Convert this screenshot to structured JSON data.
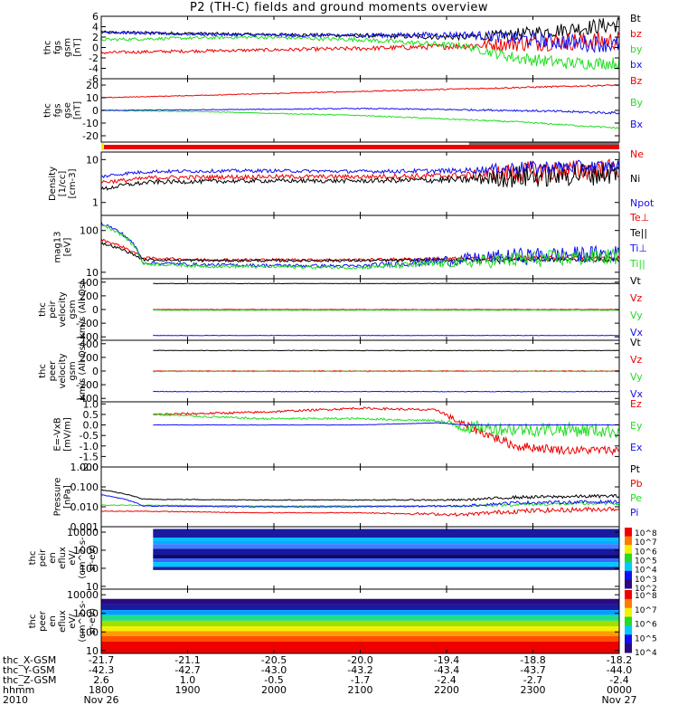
{
  "title": "P2 (TH-C) fields and ground moments overview",
  "colors": {
    "black": "#000000",
    "red": "#ee0000",
    "green": "#22dd22",
    "blue": "#1010ee",
    "yellow": "#f2f200",
    "orange": "#ff7a00"
  },
  "chart_data": [
    {
      "type": "line",
      "panel": "fgs_gsm",
      "ylabel": [
        "thc",
        "fgs",
        "gsm",
        "[nT]"
      ],
      "yticks": [
        "6",
        "4",
        "2",
        "0",
        "-2",
        "-4",
        "-6"
      ],
      "ylim": [
        -6,
        6
      ],
      "series": [
        {
          "name": "Bt",
          "color": "#000000",
          "x": [
            0,
            0.1,
            0.3,
            0.5,
            0.7,
            0.8,
            0.9,
            1.0
          ],
          "y": [
            2.9,
            2.8,
            2.5,
            2.3,
            2.0,
            2.5,
            3.5,
            4.5
          ],
          "noise": [
            0.3,
            0.3,
            0.3,
            0.4,
            0.6,
            1.2,
            1.4,
            1.6
          ]
        },
        {
          "name": "bz",
          "color": "#ee0000",
          "x": [
            0,
            0.1,
            0.3,
            0.5,
            0.7,
            0.8,
            0.9,
            1.0
          ],
          "y": [
            -1.0,
            -0.8,
            -0.5,
            -0.2,
            0.3,
            0.8,
            1.2,
            1.3
          ],
          "noise": [
            0.3,
            0.3,
            0.3,
            0.4,
            0.6,
            1.6,
            1.8,
            1.8
          ]
        },
        {
          "name": "by",
          "color": "#22dd22",
          "x": [
            0,
            0.1,
            0.3,
            0.5,
            0.7,
            0.8,
            0.9,
            1.0
          ],
          "y": [
            1.5,
            1.7,
            2.0,
            1.5,
            0.3,
            -2.0,
            -3.0,
            -3.0
          ],
          "noise": [
            0.3,
            0.3,
            0.3,
            0.4,
            0.6,
            1.2,
            1.2,
            1.2
          ]
        },
        {
          "name": "bx",
          "color": "#1010ee",
          "x": [
            0,
            0.1,
            0.3,
            0.5,
            0.7,
            0.8,
            0.9,
            1.0
          ],
          "y": [
            3.0,
            2.7,
            2.4,
            2.3,
            2.5,
            1.8,
            1.0,
            0.5
          ],
          "noise": [
            0.3,
            0.3,
            0.3,
            0.4,
            0.6,
            1.4,
            1.6,
            1.6
          ]
        }
      ]
    },
    {
      "type": "line",
      "panel": "fgs_gse_smoothed",
      "ylabel": [
        "thc",
        "fgs",
        "gse",
        "[nT]"
      ],
      "yticks": [
        "20",
        "10",
        "0",
        "-10",
        "-20"
      ],
      "ylim": [
        -25,
        25
      ],
      "series": [
        {
          "name": "Bz",
          "color": "#ee0000",
          "x": [
            0,
            0.2,
            0.5,
            0.8,
            1.0
          ],
          "y": [
            10,
            12,
            15,
            18,
            20
          ],
          "noise": [
            0.3,
            0.3,
            0.4,
            0.6,
            0.6
          ]
        },
        {
          "name": "By",
          "color": "#22dd22",
          "x": [
            0,
            0.2,
            0.5,
            0.8,
            1.0
          ],
          "y": [
            0,
            -1,
            -4,
            -9,
            -14
          ],
          "noise": [
            0.3,
            0.3,
            0.4,
            0.6,
            0.6
          ]
        },
        {
          "name": "Bx",
          "color": "#1010ee",
          "x": [
            0,
            0.2,
            0.5,
            0.8,
            1.0
          ],
          "y": [
            0,
            0.5,
            1.5,
            0,
            -2
          ],
          "noise": [
            0.3,
            0.3,
            0.4,
            0.8,
            1.0
          ]
        }
      ]
    },
    {
      "type": "line",
      "panel": "density",
      "ylabel": [
        "Density",
        "[1/cc]",
        "[cm-3]"
      ],
      "yscale": "log",
      "yticks": [
        "10",
        "1"
      ],
      "ylim": [
        0.5,
        15
      ],
      "series": [
        {
          "name": "Ne",
          "color": "#ee0000",
          "x": [
            0,
            0.05,
            0.1,
            0.3,
            0.5,
            0.7,
            0.8,
            1.0
          ],
          "y": [
            3.0,
            3.3,
            3.8,
            4.0,
            4.0,
            4.2,
            5.0,
            6.0
          ],
          "noise": [
            0.05,
            0.05,
            0.05,
            0.05,
            0.05,
            0.08,
            0.25,
            0.25
          ]
        },
        {
          "name": "Ni",
          "color": "#000000",
          "x": [
            0,
            0.05,
            0.1,
            0.3,
            0.5,
            0.7,
            0.8,
            1.0
          ],
          "y": [
            2.0,
            2.6,
            3.0,
            3.2,
            3.2,
            3.4,
            4.0,
            5.0
          ],
          "noise": [
            0.05,
            0.05,
            0.05,
            0.05,
            0.05,
            0.08,
            0.28,
            0.28
          ]
        },
        {
          "name": "Npot",
          "color": "#1010ee",
          "x": [
            0,
            0.05,
            0.1,
            0.3,
            0.5,
            0.7,
            0.8,
            1.0
          ],
          "y": [
            4.0,
            4.8,
            5.3,
            5.5,
            5.3,
            5.5,
            6.5,
            7.0
          ],
          "noise": [
            0.04,
            0.04,
            0.04,
            0.04,
            0.04,
            0.06,
            0.15,
            0.15
          ]
        }
      ]
    },
    {
      "type": "line",
      "panel": "temperature",
      "ylabel": [
        "mag13",
        "[eV]"
      ],
      "yscale": "log",
      "yticks": [
        "100",
        "10"
      ],
      "ylim": [
        7,
        230
      ],
      "series": [
        {
          "name": "Te⊥",
          "color": "#ee0000",
          "x": [
            0,
            0.08,
            0.2,
            0.5,
            0.8,
            1.0
          ],
          "y": [
            60,
            22,
            20,
            20,
            22,
            22
          ],
          "noise": [
            0.03,
            0.03,
            0.03,
            0.03,
            0.05,
            0.05
          ]
        },
        {
          "name": "Te||",
          "color": "#000000",
          "x": [
            0,
            0.08,
            0.2,
            0.5,
            0.8,
            1.0
          ],
          "y": [
            50,
            20,
            19,
            19,
            20,
            20
          ],
          "noise": [
            0.03,
            0.03,
            0.03,
            0.03,
            0.05,
            0.05
          ]
        },
        {
          "name": "Ti⊥",
          "color": "#1010ee",
          "x": [
            0,
            0.08,
            0.2,
            0.5,
            0.7,
            0.8,
            1.0
          ],
          "y": [
            150,
            17,
            15,
            14,
            20,
            24,
            28
          ],
          "noise": [
            0.04,
            0.04,
            0.04,
            0.04,
            0.15,
            0.2,
            0.2
          ]
        },
        {
          "name": "Ti||",
          "color": "#22dd22",
          "x": [
            0,
            0.08,
            0.2,
            0.5,
            0.7,
            0.8,
            1.0
          ],
          "y": [
            140,
            16,
            14,
            13,
            17,
            20,
            24
          ],
          "noise": [
            0.04,
            0.04,
            0.04,
            0.04,
            0.12,
            0.2,
            0.2
          ]
        }
      ]
    },
    {
      "type": "line",
      "panel": "peir_velocity",
      "ylabel": [
        "thc",
        "peir",
        "velocity",
        "gsm",
        "km/s (All Qs)"
      ],
      "yticks": [
        "400",
        "200",
        "0",
        "-200",
        "-400"
      ],
      "ylim": [
        -450,
        450
      ],
      "start": 0.1,
      "series": [
        {
          "name": "Vt",
          "color": "#000000",
          "x": [
            0.1,
            1.0
          ],
          "y": [
            380,
            380
          ],
          "noise": [
            3,
            3
          ]
        },
        {
          "name": "Vz",
          "color": "#ee0000",
          "x": [
            0.1,
            1.0
          ],
          "y": [
            0,
            0
          ],
          "noise": [
            3,
            3
          ]
        },
        {
          "name": "Vy",
          "color": "#22dd22",
          "x": [
            0.1,
            1.0
          ],
          "y": [
            -10,
            -10
          ],
          "noise": [
            4,
            4
          ]
        },
        {
          "name": "Vx",
          "color": "#1010ee",
          "x": [
            0.1,
            1.0
          ],
          "y": [
            -380,
            -380
          ],
          "noise": [
            3,
            3
          ]
        }
      ]
    },
    {
      "type": "line",
      "panel": "peer_velocity",
      "ylabel": [
        "thc",
        "peer",
        "velocity",
        "gsm",
        "km/s (All Qs)"
      ],
      "yticks": [
        "400",
        "200",
        "0",
        "-200",
        "-400"
      ],
      "ylim": [
        -450,
        450
      ],
      "start": 0.1,
      "series": [
        {
          "name": "Vt",
          "color": "#000000",
          "x": [
            0.1,
            1.0
          ],
          "y": [
            300,
            300
          ],
          "noise": [
            4,
            4
          ]
        },
        {
          "name": "Vz",
          "color": "#ee0000",
          "x": [
            0.1,
            1.0
          ],
          "y": [
            0,
            0
          ],
          "noise": [
            4,
            4
          ]
        },
        {
          "name": "Vy",
          "color": "#22dd22",
          "x": [
            0.1,
            1.0
          ],
          "y": [
            -5,
            -5
          ],
          "noise": [
            5,
            5
          ]
        },
        {
          "name": "Vx",
          "color": "#1010ee",
          "x": [
            0.1,
            1.0
          ],
          "y": [
            -300,
            -300
          ],
          "noise": [
            4,
            4
          ]
        }
      ]
    },
    {
      "type": "line",
      "panel": "efield",
      "ylabel": [
        "E=-VxB",
        "[mV/m]"
      ],
      "yticks": [
        "1.0",
        "0.5",
        "0.0",
        "-0.5",
        "-1.0",
        "-1.5",
        "-2.0"
      ],
      "ylim": [
        -2.0,
        1.1
      ],
      "start": 0.1,
      "series": [
        {
          "name": "Ez",
          "color": "#ee0000",
          "x": [
            0.1,
            0.3,
            0.5,
            0.65,
            0.7,
            0.8,
            0.9,
            1.0
          ],
          "y": [
            0.5,
            0.6,
            0.8,
            0.7,
            0.0,
            -1.0,
            -1.2,
            -1.2
          ],
          "noise": [
            0.05,
            0.05,
            0.05,
            0.06,
            0.2,
            0.22,
            0.2,
            0.2
          ]
        },
        {
          "name": "Ey",
          "color": "#22dd22",
          "x": [
            0.1,
            0.3,
            0.5,
            0.65,
            0.7,
            0.8,
            0.9,
            1.0
          ],
          "y": [
            0.5,
            0.3,
            0.3,
            0.2,
            -0.1,
            -0.2,
            -0.2,
            -0.3
          ],
          "noise": [
            0.05,
            0.05,
            0.05,
            0.06,
            0.3,
            0.35,
            0.35,
            0.35
          ]
        },
        {
          "name": "Ex",
          "color": "#1010ee",
          "x": [
            0.1,
            0.3,
            0.5,
            0.65,
            0.7,
            0.8,
            0.9,
            1.0
          ],
          "y": [
            0.0,
            0.0,
            0.0,
            0.1,
            0.0,
            0.0,
            0.0,
            0.0
          ],
          "noise": [
            0.01,
            0.01,
            0.01,
            0.01,
            0.01,
            0.01,
            0.01,
            0.01
          ]
        }
      ]
    },
    {
      "type": "line",
      "panel": "pressure",
      "ylabel": [
        "Pressure",
        "[nPa]"
      ],
      "yscale": "log",
      "yticks": [
        "1.000",
        "0.100",
        "0.010",
        "0.001"
      ],
      "ylim": [
        0.001,
        1.0
      ],
      "series": [
        {
          "name": "Pt",
          "color": "#000000",
          "x": [
            0,
            0.08,
            0.3,
            0.5,
            0.7,
            0.8,
            1.0
          ],
          "y": [
            0.07,
            0.024,
            0.022,
            0.022,
            0.022,
            0.03,
            0.035
          ],
          "noise": [
            0.02,
            0.02,
            0.02,
            0.02,
            0.05,
            0.08,
            0.08
          ]
        },
        {
          "name": "Pb",
          "color": "#ee0000",
          "x": [
            0,
            0.08,
            0.3,
            0.5,
            0.7,
            0.8,
            1.0
          ],
          "y": [
            0.006,
            0.006,
            0.005,
            0.005,
            0.004,
            0.006,
            0.008
          ],
          "noise": [
            0.02,
            0.02,
            0.02,
            0.02,
            0.08,
            0.12,
            0.12
          ]
        },
        {
          "name": "Pe",
          "color": "#22dd22",
          "x": [
            0,
            0.08,
            0.3,
            0.5,
            0.7,
            0.8,
            1.0
          ],
          "y": [
            0.012,
            0.012,
            0.011,
            0.011,
            0.011,
            0.013,
            0.015
          ],
          "noise": [
            0.02,
            0.02,
            0.02,
            0.02,
            0.04,
            0.08,
            0.08
          ]
        },
        {
          "name": "Pi",
          "color": "#1010ee",
          "x": [
            0,
            0.08,
            0.3,
            0.5,
            0.7,
            0.8,
            1.0
          ],
          "y": [
            0.04,
            0.011,
            0.01,
            0.01,
            0.011,
            0.016,
            0.018
          ],
          "noise": [
            0.02,
            0.02,
            0.02,
            0.02,
            0.05,
            0.08,
            0.08
          ]
        }
      ]
    },
    {
      "type": "heatmap",
      "panel": "peir_en_eflux",
      "ylabel": [
        "thc",
        "peir",
        "en",
        "eflux",
        "eV/",
        "(cm^2-s-",
        "sr-eV)"
      ],
      "yscale": "log",
      "yticks": [
        "10000",
        "1000",
        "100",
        "10"
      ],
      "ylim": [
        7,
        20000
      ],
      "colorbar_ticks": [
        "10^8",
        "10^7",
        "10^6",
        "10^5",
        "10^4",
        "10^3",
        "10^2"
      ]
    },
    {
      "type": "heatmap",
      "panel": "peer_en_eflux",
      "ylabel": [
        "thc",
        "peer",
        "en",
        "eflux",
        "eV/",
        "(cm^2-s-",
        "sr-eV)"
      ],
      "yscale": "log",
      "yticks": [
        "10000",
        "1000",
        "100",
        "10"
      ],
      "ylim": [
        7,
        20000
      ],
      "colorbar_ticks": [
        "10^8",
        "10^7",
        "10^6",
        "10^5",
        "10^4"
      ]
    }
  ],
  "time_axis": {
    "rows": [
      {
        "label": "thc_X-GSM",
        "values": [
          "-21.7",
          "-21.1",
          "-20.5",
          "-20.0",
          "-19.4",
          "-18.8",
          "-18.2"
        ]
      },
      {
        "label": "thc_Y-GSM",
        "values": [
          "-42.3",
          "-42.7",
          "-43.0",
          "-43.2",
          "-43.4",
          "-43.7",
          "-44.0"
        ]
      },
      {
        "label": "thc_Z-GSM",
        "values": [
          "2.6",
          "1.0",
          "-0.5",
          "-1.7",
          "-2.4",
          "-2.7",
          "-2.4"
        ]
      },
      {
        "label": "hhmm",
        "values": [
          "1800",
          "1900",
          "2000",
          "2100",
          "2200",
          "2300",
          "0000"
        ]
      }
    ],
    "year": "2010",
    "date_start": "Nov 26",
    "date_end": "Nov 27"
  }
}
